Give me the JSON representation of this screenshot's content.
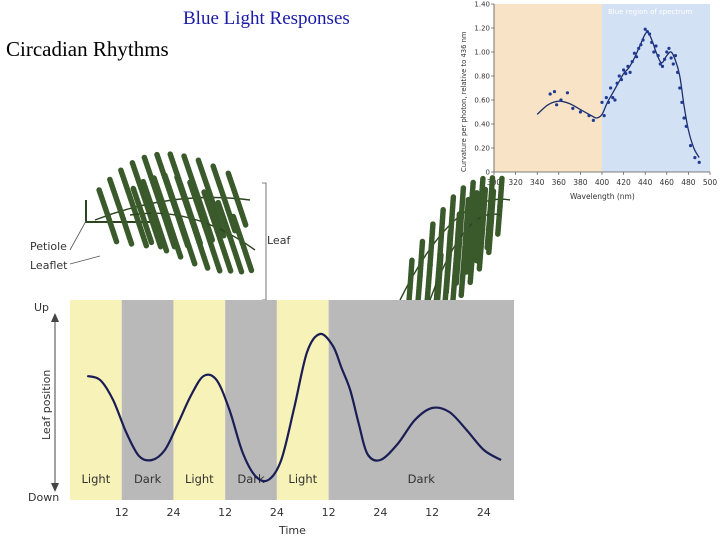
{
  "titles": {
    "line1": "Blue Light Responses",
    "line2": "Circadian Rhythms"
  },
  "plant_labels": {
    "petiole": "Petiole",
    "leaflet": "Leaflet",
    "leaf": "Leaf"
  },
  "colors": {
    "title_blue": "#1a1aa8",
    "light_band": "#f7f2b8",
    "dark_band": "#b9b9b9",
    "curve": "#1b1d55",
    "spectrum_orange": "#f8e3c6",
    "spectrum_blue": "#d3e1f4",
    "point_color": "#1f3a93",
    "foliage": "#3a5a2c"
  },
  "chart_data": [
    {
      "type": "scatter",
      "title": "",
      "region_label": "Blue region of spectrum",
      "xlabel": "Wavelength (nm)",
      "ylabel": "Curvature per photon, relative to 436 nm",
      "xlim": [
        300,
        500
      ],
      "ylim": [
        0,
        1.4
      ],
      "x_ticks": [
        300,
        320,
        340,
        360,
        380,
        400,
        420,
        440,
        460,
        480,
        500
      ],
      "y_ticks": [
        "0",
        "0.20",
        "0.40",
        "0.60",
        "0.80",
        "1.00",
        "1.20",
        "1.40"
      ],
      "regions": [
        {
          "from": 300,
          "to": 400,
          "color": "#f8e3c6"
        },
        {
          "from": 400,
          "to": 500,
          "color": "#d3e1f4"
        }
      ],
      "points": [
        [
          352,
          0.65
        ],
        [
          356,
          0.67
        ],
        [
          358,
          0.56
        ],
        [
          362,
          0.6
        ],
        [
          368,
          0.66
        ],
        [
          373,
          0.53
        ],
        [
          380,
          0.5
        ],
        [
          388,
          0.47
        ],
        [
          392,
          0.43
        ],
        [
          400,
          0.58
        ],
        [
          402,
          0.47
        ],
        [
          404,
          0.62
        ],
        [
          406,
          0.58
        ],
        [
          408,
          0.7
        ],
        [
          410,
          0.62
        ],
        [
          412,
          0.6
        ],
        [
          414,
          0.74
        ],
        [
          416,
          0.8
        ],
        [
          418,
          0.77
        ],
        [
          420,
          0.85
        ],
        [
          422,
          0.82
        ],
        [
          424,
          0.88
        ],
        [
          426,
          0.83
        ],
        [
          428,
          0.92
        ],
        [
          430,
          0.99
        ],
        [
          432,
          0.96
        ],
        [
          434,
          1.03
        ],
        [
          436,
          1.06
        ],
        [
          438,
          1.1
        ],
        [
          440,
          1.19
        ],
        [
          442,
          1.17
        ],
        [
          444,
          1.15
        ],
        [
          446,
          1.08
        ],
        [
          448,
          1.0
        ],
        [
          450,
          1.05
        ],
        [
          452,
          0.97
        ],
        [
          454,
          0.9
        ],
        [
          456,
          0.88
        ],
        [
          458,
          0.94
        ],
        [
          460,
          1.0
        ],
        [
          462,
          1.03
        ],
        [
          464,
          0.95
        ],
        [
          466,
          0.9
        ],
        [
          468,
          0.97
        ],
        [
          470,
          0.83
        ],
        [
          472,
          0.7
        ],
        [
          474,
          0.58
        ],
        [
          476,
          0.45
        ],
        [
          478,
          0.38
        ],
        [
          482,
          0.22
        ],
        [
          486,
          0.12
        ],
        [
          490,
          0.08
        ]
      ],
      "fit_curve": [
        [
          340,
          0.48
        ],
        [
          350,
          0.56
        ],
        [
          360,
          0.59
        ],
        [
          370,
          0.57
        ],
        [
          380,
          0.52
        ],
        [
          390,
          0.47
        ],
        [
          395,
          0.45
        ],
        [
          400,
          0.48
        ],
        [
          405,
          0.58
        ],
        [
          410,
          0.66
        ],
        [
          415,
          0.74
        ],
        [
          420,
          0.82
        ],
        [
          425,
          0.87
        ],
        [
          430,
          0.95
        ],
        [
          435,
          1.05
        ],
        [
          440,
          1.15
        ],
        [
          443,
          1.16
        ],
        [
          447,
          1.08
        ],
        [
          450,
          1.0
        ],
        [
          455,
          0.91
        ],
        [
          460,
          0.97
        ],
        [
          464,
          1.0
        ],
        [
          468,
          0.93
        ],
        [
          472,
          0.8
        ],
        [
          476,
          0.55
        ],
        [
          480,
          0.35
        ],
        [
          485,
          0.2
        ],
        [
          490,
          0.12
        ]
      ]
    },
    {
      "type": "line",
      "title": "",
      "xlabel": "Time",
      "ylabel": "Leaf position",
      "y_top_label": "Up",
      "y_bottom_label": "Down",
      "x_tick_labels": [
        "12",
        "24",
        "12",
        "24",
        "12",
        "24",
        "12",
        "24"
      ],
      "x_tick_times": [
        12,
        24,
        36,
        48,
        60,
        72,
        84,
        96
      ],
      "xlim": [
        0,
        103
      ],
      "ylim": [
        0,
        1
      ],
      "bands": [
        {
          "label": "Light",
          "kind": "light",
          "from": 0,
          "to": 12
        },
        {
          "label": "Dark",
          "kind": "dark",
          "from": 12,
          "to": 24
        },
        {
          "label": "Light",
          "kind": "light",
          "from": 24,
          "to": 36
        },
        {
          "label": "Dark",
          "kind": "dark",
          "from": 36,
          "to": 48
        },
        {
          "label": "Light",
          "kind": "light",
          "from": 48,
          "to": 60
        },
        {
          "label": "Dark",
          "kind": "dark",
          "from": 60,
          "to": 103
        }
      ],
      "series": [
        {
          "values": [
            [
              4,
              0.62
            ],
            [
              7,
              0.6
            ],
            [
              10,
              0.5
            ],
            [
              13,
              0.34
            ],
            [
              16,
              0.22
            ],
            [
              19,
              0.2
            ],
            [
              22,
              0.25
            ],
            [
              25,
              0.38
            ],
            [
              28,
              0.52
            ],
            [
              31,
              0.62
            ],
            [
              34,
              0.6
            ],
            [
              37,
              0.45
            ],
            [
              40,
              0.24
            ],
            [
              43,
              0.12
            ],
            [
              46,
              0.1
            ],
            [
              49,
              0.2
            ],
            [
              52,
              0.46
            ],
            [
              55,
              0.74
            ],
            [
              58,
              0.83
            ],
            [
              61,
              0.77
            ],
            [
              63,
              0.66
            ],
            [
              65,
              0.55
            ],
            [
              67,
              0.38
            ],
            [
              69,
              0.23
            ],
            [
              72,
              0.2
            ],
            [
              76,
              0.28
            ],
            [
              80,
              0.4
            ],
            [
              84,
              0.46
            ],
            [
              88,
              0.44
            ],
            [
              92,
              0.35
            ],
            [
              96,
              0.25
            ],
            [
              100,
              0.2
            ]
          ]
        }
      ]
    }
  ]
}
